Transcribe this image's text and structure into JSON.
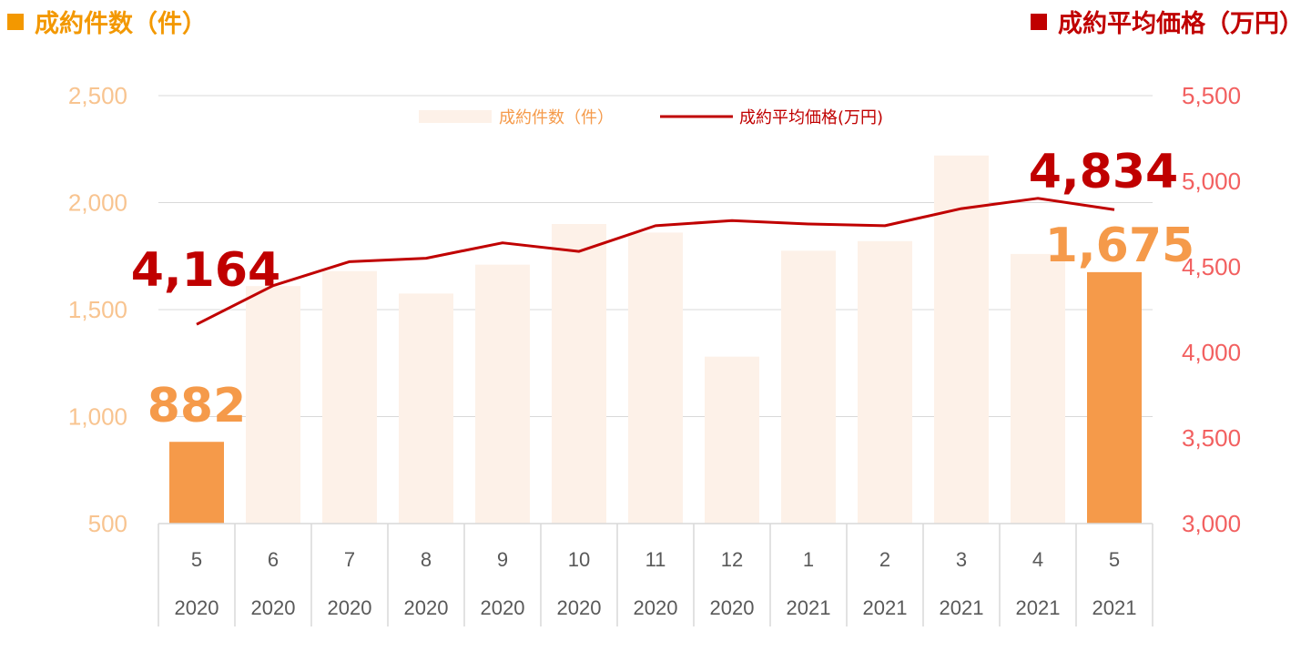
{
  "header_left": {
    "label": "成約件数（件）",
    "color": "#f39800"
  },
  "header_right": {
    "label": "成約平均価格（万円）",
    "color": "#c00000"
  },
  "legend": {
    "bar_label": "成約件数（件）",
    "line_label": "成約平均価格(万円)"
  },
  "colors": {
    "bar_faded": "#fdf1e8",
    "bar_highlight": "#f59a4a",
    "line": "#c00000",
    "left_axis_text": "#f8c490",
    "right_axis_text": "#f26060",
    "grid": "#d9d9d9"
  },
  "chart_data": {
    "type": "bar+line",
    "categories": [
      "5",
      "6",
      "7",
      "8",
      "9",
      "10",
      "11",
      "12",
      "1",
      "2",
      "3",
      "4",
      "5"
    ],
    "category_years": [
      "2020",
      "2020",
      "2020",
      "2020",
      "2020",
      "2020",
      "2020",
      "2020",
      "2021",
      "2021",
      "2021",
      "2021",
      "2021"
    ],
    "series": [
      {
        "name": "成約件数（件）",
        "type": "bar",
        "axis": "left",
        "values": [
          882,
          1610,
          1680,
          1575,
          1710,
          1900,
          1860,
          1280,
          1775,
          1820,
          2220,
          1760,
          1675
        ],
        "highlight": [
          0,
          12
        ]
      },
      {
        "name": "成約平均価格(万円)",
        "type": "line",
        "axis": "right",
        "values": [
          4164,
          4390,
          4530,
          4550,
          4640,
          4590,
          4740,
          4770,
          4750,
          4740,
          4840,
          4900,
          4834
        ]
      }
    ],
    "y_left": {
      "min": 500,
      "max": 2500,
      "ticks": [
        500,
        1000,
        1500,
        2000,
        2500
      ],
      "tick_labels": [
        "500",
        "1,000",
        "1,500",
        "2,000",
        "2,500"
      ]
    },
    "y_right": {
      "min": 3000,
      "max": 5500,
      "ticks": [
        3000,
        3500,
        4000,
        4500,
        5000,
        5500
      ],
      "tick_labels": [
        "3,000",
        "3,500",
        "4,000",
        "4,500",
        "5,000",
        "5,500"
      ]
    },
    "data_labels": {
      "bar_first": "882",
      "bar_last": "1,675",
      "line_first": "4,164",
      "line_last": "4,834"
    },
    "grid": true,
    "legend_position": "top"
  }
}
